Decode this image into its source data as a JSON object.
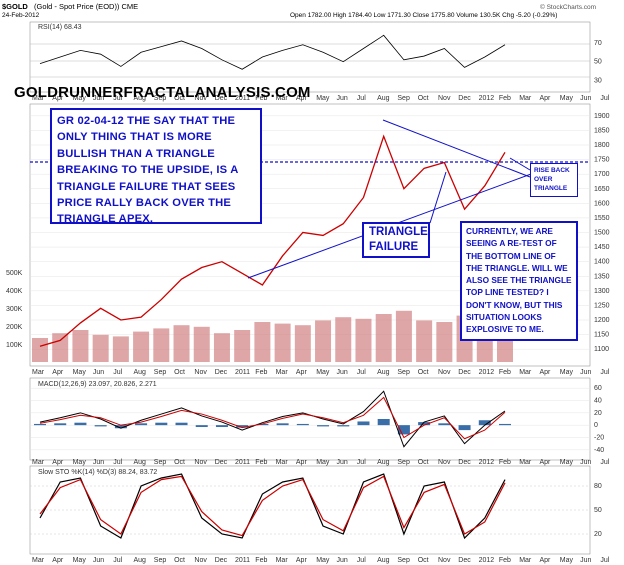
{
  "header": {
    "symbol": "$GOLD",
    "name": "(Gold - Spot Price (EOD)) CME",
    "date": "24-Feb-2012",
    "ohlc": "Open 1782.00  High 1784.40  Low 1771.30  Close 1775.80  Volume 130.5K  Chg -5.20 (-0.29%)",
    "source": "© StockCharts.com"
  },
  "site_label": "GOLDRUNNERFRACTALANALYSIS.COM",
  "annotations": {
    "gr_note": "GR  02-04-12  THE SAY THAT THE ONLY THING THAT IS MORE BULLISH THAN A TRIANGLE BREAKING TO THE UPSIDE, IS A TRIANGLE FAILURE THAT SEES PRICE RALLY BACK OVER THE TRIANGLE APEX.",
    "triangle_failure": "TRIANGLE FAILURE",
    "currently_note": "CURRENTLY, WE ARE SEEING A RE-TEST OF THE BOTTOM LINE OF THE TRIANGLE.  WILL WE ALSO SEE THE TRIANGLE TOP LINE TESTED?  I DON'T KNOW, BUT THIS SITUATION LOOKS EXPLOSIVE TO ME.",
    "rise_back": "RISE BACK OVER TRIANGLE"
  },
  "colors": {
    "annotation_blue": "#1010c8",
    "price_red": "#cc0000",
    "rsi_fill": "#3c7a3c",
    "macd_hist": "#3a6ea8",
    "volume_bar": "#d08080"
  },
  "chart_data": [
    {
      "type": "line",
      "title": "RSI(14) 68.43",
      "y_ticks": [
        70,
        50,
        30
      ],
      "ylim": [
        20,
        90
      ],
      "x": [
        "Mar",
        "Apr",
        "May",
        "Jun",
        "Jul",
        "Aug",
        "Sep",
        "Oct",
        "Nov",
        "Dec",
        "2011",
        "Feb",
        "Mar",
        "Apr",
        "May",
        "Jun",
        "Jul",
        "Aug",
        "Sep",
        "Oct",
        "Nov",
        "Dec",
        "2012",
        "Feb"
      ],
      "series": [
        {
          "name": "RSI(14)",
          "values": [
            48,
            55,
            62,
            58,
            45,
            60,
            66,
            72,
            64,
            52,
            42,
            55,
            62,
            68,
            60,
            50,
            64,
            78,
            52,
            56,
            64,
            44,
            55,
            68
          ]
        }
      ]
    },
    {
      "type": "line",
      "title": "$GOLD price",
      "y_ticks": [
        1900,
        1850,
        1800,
        1750,
        1700,
        1650,
        1600,
        1550,
        1500,
        1450,
        1400,
        1350,
        1300,
        1250,
        1200,
        1150,
        1100
      ],
      "ylim": [
        1080,
        1920
      ],
      "x": [
        "Mar",
        "Apr",
        "May",
        "Jun",
        "Jul",
        "Aug",
        "Sep",
        "Oct",
        "Nov",
        "Dec",
        "2011",
        "Feb",
        "Mar",
        "Apr",
        "May",
        "Jun",
        "Jul",
        "Aug",
        "Sep",
        "Oct",
        "Nov",
        "Dec",
        "2012",
        "Feb"
      ],
      "series": [
        {
          "name": "Price",
          "values": [
            1110,
            1130,
            1190,
            1240,
            1200,
            1210,
            1270,
            1340,
            1380,
            1400,
            1360,
            1320,
            1420,
            1500,
            1490,
            1530,
            1620,
            1830,
            1650,
            1720,
            1740,
            1580,
            1660,
            1775
          ]
        }
      ],
      "volume_ticks": [
        "500K",
        "400K",
        "300K",
        "200K",
        "100K"
      ],
      "volume_values": [
        150,
        180,
        200,
        170,
        160,
        190,
        210,
        230,
        220,
        180,
        200,
        250,
        240,
        230,
        260,
        280,
        270,
        300,
        320,
        260,
        250,
        290,
        310,
        280
      ],
      "horizontal_level": 1713
    },
    {
      "type": "line",
      "title": "MACD(12,26,9) 23.097, 20.826, 2.271",
      "legend": [
        "23.097",
        "20.826",
        "2.271"
      ],
      "y_ticks": [
        60,
        40,
        20,
        0,
        -20,
        -40
      ],
      "ylim": [
        -50,
        70
      ],
      "x": [
        "Mar",
        "Apr",
        "May",
        "Jun",
        "Jul",
        "Aug",
        "Sep",
        "Oct",
        "Nov",
        "Dec",
        "2011",
        "Feb",
        "Mar",
        "Apr",
        "May",
        "Jun",
        "Jul",
        "Aug",
        "Sep",
        "Oct",
        "Nov",
        "Dec",
        "2012",
        "Feb"
      ],
      "series": [
        {
          "name": "MACD",
          "values": [
            5,
            12,
            20,
            10,
            -5,
            8,
            18,
            28,
            15,
            5,
            -8,
            4,
            14,
            20,
            10,
            2,
            22,
            55,
            -35,
            5,
            15,
            -30,
            0,
            23
          ]
        },
        {
          "name": "Signal",
          "values": [
            3,
            9,
            16,
            12,
            0,
            5,
            14,
            24,
            18,
            8,
            -4,
            2,
            11,
            18,
            12,
            4,
            16,
            45,
            -20,
            0,
            12,
            -22,
            -8,
            21
          ]
        },
        {
          "name": "Histogram",
          "values": [
            2,
            3,
            4,
            -2,
            -5,
            3,
            4,
            4,
            -3,
            -3,
            -4,
            2,
            3,
            2,
            -2,
            -2,
            6,
            10,
            -15,
            5,
            3,
            -8,
            8,
            2
          ]
        }
      ]
    },
    {
      "type": "line",
      "title": "Slow STO %K(14) %D(3) 88.24, 83.72",
      "legend": [
        "88.24",
        "83.72"
      ],
      "y_ticks": [
        80,
        50,
        20
      ],
      "ylim": [
        0,
        100
      ],
      "x": [
        "Mar",
        "Apr",
        "May",
        "Jun",
        "Jul",
        "Aug",
        "Sep",
        "Oct",
        "Nov",
        "Dec",
        "2011",
        "Feb",
        "Mar",
        "Apr",
        "May",
        "Jun",
        "Jul",
        "Aug",
        "Sep",
        "Oct",
        "Nov",
        "Dec",
        "2012",
        "Feb"
      ],
      "series": [
        {
          "name": "%K",
          "values": [
            40,
            85,
            90,
            30,
            15,
            80,
            90,
            95,
            40,
            20,
            15,
            70,
            85,
            90,
            30,
            20,
            85,
            95,
            20,
            80,
            85,
            15,
            40,
            88
          ]
        },
        {
          "name": "%D",
          "values": [
            45,
            78,
            88,
            38,
            20,
            72,
            88,
            92,
            48,
            25,
            18,
            62,
            80,
            88,
            38,
            24,
            78,
            92,
            28,
            72,
            82,
            20,
            35,
            84
          ]
        }
      ]
    }
  ],
  "x_axis_labels": [
    "Mar",
    "Apr",
    "May",
    "Jun",
    "Jul",
    "Aug",
    "Sep",
    "Oct",
    "Nov",
    "Dec",
    "2011",
    "Feb",
    "Mar",
    "Apr",
    "May",
    "Jun",
    "Jul",
    "Aug",
    "Sep",
    "Oct",
    "Nov",
    "Dec",
    "2012",
    "Feb",
    "Mar",
    "Apr",
    "May",
    "Jun",
    "Jul"
  ]
}
